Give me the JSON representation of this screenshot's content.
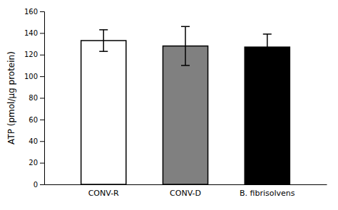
{
  "chart_data": {
    "type": "bar",
    "categories": [
      "CONV-R",
      "CONV-D",
      "B. fibrisolvens"
    ],
    "values": [
      133,
      128,
      127
    ],
    "errors": [
      10,
      18,
      12
    ],
    "colors": [
      "#ffffff",
      "#808080",
      "#000000"
    ],
    "ylabel": "ATP (pmol/µg protein)",
    "ylim": [
      0,
      160
    ],
    "yticks": [
      0,
      20,
      40,
      60,
      80,
      100,
      120,
      140,
      160
    ],
    "grid": false
  }
}
